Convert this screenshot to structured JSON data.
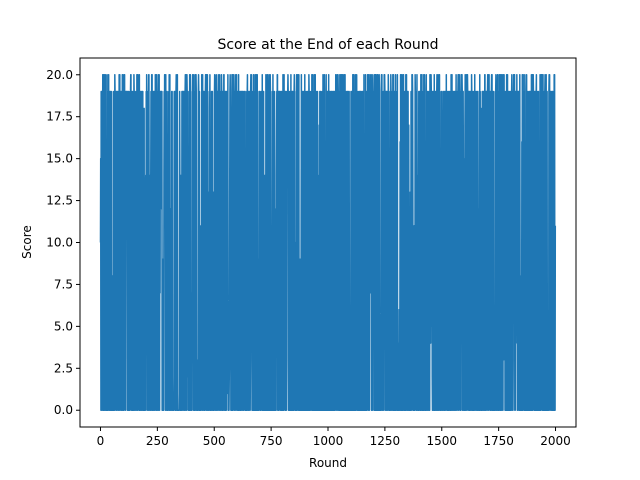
{
  "chart_data": {
    "type": "line",
    "title": "Score at the End of each Round",
    "xlabel": "Round",
    "ylabel": "Score",
    "xlim": [
      -90,
      2090
    ],
    "ylim": [
      -1.0,
      21.0
    ],
    "x_ticks": [
      0,
      250,
      500,
      750,
      1000,
      1250,
      1500,
      1750,
      2000
    ],
    "x_tick_labels": [
      "0",
      "250",
      "500",
      "750",
      "1000",
      "1250",
      "1500",
      "1750",
      "2000"
    ],
    "y_ticks": [
      0.0,
      2.5,
      5.0,
      7.5,
      10.0,
      12.5,
      15.0,
      17.5,
      20.0
    ],
    "y_tick_labels": [
      "0.0",
      "2.5",
      "5.0",
      "7.5",
      "10.0",
      "12.5",
      "15.0",
      "17.5",
      "20.0"
    ],
    "grid": false,
    "series": [
      {
        "color": "#1f77b4",
        "rounds": 2000,
        "min": 0,
        "max": 20,
        "dominant_values": [
          0,
          19,
          20
        ],
        "note_values": "approximate; dense oscillation between ~0 and ~19-20"
      }
    ]
  }
}
